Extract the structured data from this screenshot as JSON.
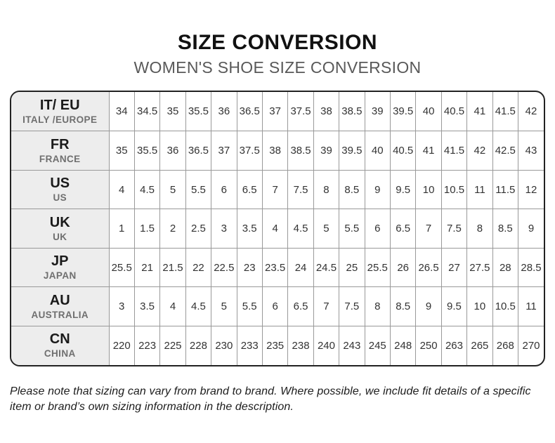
{
  "title": "SIZE CONVERSION",
  "subtitle": "WOMEN'S SHOE SIZE CONVERSION",
  "note": "Please note that sizing can vary from brand to brand. Where possible, we include fit details of a specific item or brand’s own sizing information in the description.",
  "colors": {
    "title-color": "#111111",
    "subtitle-color": "#595959",
    "outer-border": "#222222",
    "inner-border": "#999999",
    "header-bg": "#ededed",
    "value-color": "#333333"
  },
  "chart_data": {
    "type": "table",
    "title": "SIZE CONVERSION",
    "subtitle": "WOMEN'S SHOE SIZE CONVERSION",
    "rows": [
      {
        "code": "IT/ EU",
        "region": "ITALY /EUROPE",
        "values": [
          "34",
          "34.5",
          "35",
          "35.5",
          "36",
          "36.5",
          "37",
          "37.5",
          "38",
          "38.5",
          "39",
          "39.5",
          "40",
          "40.5",
          "41",
          "41.5",
          "42"
        ]
      },
      {
        "code": "FR",
        "region": "FRANCE",
        "values": [
          "35",
          "35.5",
          "36",
          "36.5",
          "37",
          "37.5",
          "38",
          "38.5",
          "39",
          "39.5",
          "40",
          "40.5",
          "41",
          "41.5",
          "42",
          "42.5",
          "43"
        ]
      },
      {
        "code": "US",
        "region": "US",
        "values": [
          "4",
          "4.5",
          "5",
          "5.5",
          "6",
          "6.5",
          "7",
          "7.5",
          "8",
          "8.5",
          "9",
          "9.5",
          "10",
          "10.5",
          "11",
          "11.5",
          "12"
        ]
      },
      {
        "code": "UK",
        "region": "UK",
        "values": [
          "1",
          "1.5",
          "2",
          "2.5",
          "3",
          "3.5",
          "4",
          "4.5",
          "5",
          "5.5",
          "6",
          "6.5",
          "7",
          "7.5",
          "8",
          "8.5",
          "9"
        ]
      },
      {
        "code": "JP",
        "region": "JAPAN",
        "values": [
          "25.5",
          "21",
          "21.5",
          "22",
          "22.5",
          "23",
          "23.5",
          "24",
          "24.5",
          "25",
          "25.5",
          "26",
          "26.5",
          "27",
          "27.5",
          "28",
          "28.5"
        ]
      },
      {
        "code": "AU",
        "region": "AUSTRALIA",
        "values": [
          "3",
          "3.5",
          "4",
          "4.5",
          "5",
          "5.5",
          "6",
          "6.5",
          "7",
          "7.5",
          "8",
          "8.5",
          "9",
          "9.5",
          "10",
          "10.5",
          "11"
        ]
      },
      {
        "code": "CN",
        "region": "CHINA",
        "values": [
          "220",
          "223",
          "225",
          "228",
          "230",
          "233",
          "235",
          "238",
          "240",
          "243",
          "245",
          "248",
          "250",
          "263",
          "265",
          "268",
          "270"
        ]
      }
    ]
  }
}
